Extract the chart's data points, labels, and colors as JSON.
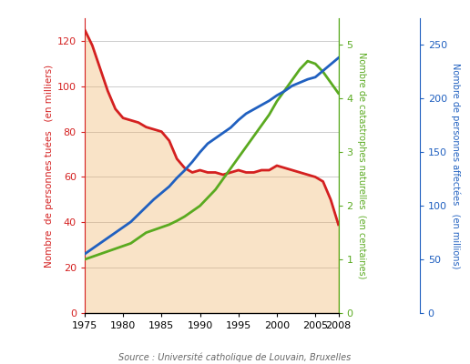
{
  "years_red": [
    1975,
    1976,
    1977,
    1978,
    1979,
    1980,
    1981,
    1982,
    1983,
    1984,
    1985,
    1986,
    1987,
    1988,
    1989,
    1990,
    1991,
    1992,
    1993,
    1994,
    1995,
    1996,
    1997,
    1998,
    1999,
    2000,
    2001,
    2002,
    2003,
    2004,
    2005,
    2006,
    2007,
    2008
  ],
  "values_red": [
    125,
    118,
    108,
    98,
    90,
    86,
    85,
    84,
    82,
    81,
    80,
    76,
    68,
    64,
    62,
    63,
    62,
    62,
    61,
    62,
    63,
    62,
    62,
    63,
    63,
    65,
    64,
    63,
    62,
    61,
    60,
    58,
    50,
    39
  ],
  "years_green": [
    1975,
    1976,
    1977,
    1978,
    1979,
    1980,
    1981,
    1982,
    1983,
    1984,
    1985,
    1986,
    1987,
    1988,
    1989,
    1990,
    1991,
    1992,
    1993,
    1994,
    1995,
    1996,
    1997,
    1998,
    1999,
    2000,
    2001,
    2002,
    2003,
    2004,
    2005,
    2006,
    2007,
    2008
  ],
  "values_green": [
    1.0,
    1.05,
    1.1,
    1.15,
    1.2,
    1.25,
    1.3,
    1.4,
    1.5,
    1.55,
    1.6,
    1.65,
    1.72,
    1.8,
    1.9,
    2.0,
    2.15,
    2.3,
    2.5,
    2.7,
    2.9,
    3.1,
    3.3,
    3.5,
    3.7,
    3.95,
    4.15,
    4.35,
    4.55,
    4.7,
    4.65,
    4.5,
    4.3,
    4.1
  ],
  "years_blue": [
    1975,
    1976,
    1977,
    1978,
    1979,
    1980,
    1981,
    1982,
    1983,
    1984,
    1985,
    1986,
    1987,
    1988,
    1989,
    1990,
    1991,
    1992,
    1993,
    1994,
    1995,
    1996,
    1997,
    1998,
    1999,
    2000,
    2001,
    2002,
    2003,
    2004,
    2005,
    2006,
    2007,
    2008
  ],
  "values_blue": [
    55,
    60,
    65,
    70,
    75,
    80,
    85,
    92,
    99,
    106,
    112,
    118,
    126,
    133,
    141,
    150,
    158,
    163,
    168,
    173,
    180,
    186,
    190,
    194,
    198,
    203,
    207,
    212,
    215,
    218,
    220,
    226,
    232,
    238
  ],
  "red_color": "#d42020",
  "green_color": "#5aaa20",
  "blue_color": "#2060c0",
  "fill_color": "#f0b060",
  "fill_alpha": 0.35,
  "ylabel_left": "Nombre  de personnes tuées   (en milliers)",
  "ylabel_right_green": "Nombre de catastrophes naturelles  (en centaines)",
  "ylabel_right_blue": "Nombre de personnes affectées   (en millions)",
  "source": "Source : Université catholique de Louvain, Bruxelles",
  "xlim": [
    1975,
    2008
  ],
  "ylim_left": [
    0,
    130
  ],
  "ylim_green": [
    0,
    5.5
  ],
  "ylim_blue": [
    0,
    275
  ],
  "yticks_left": [
    0,
    20,
    40,
    60,
    80,
    100,
    120
  ],
  "yticks_green": [
    0,
    1,
    2,
    3,
    4,
    5
  ],
  "yticks_blue": [
    0,
    50,
    100,
    150,
    200,
    250
  ],
  "xticks": [
    1975,
    1980,
    1985,
    1990,
    1995,
    2000,
    2005,
    2008
  ],
  "background_color": "#ffffff"
}
